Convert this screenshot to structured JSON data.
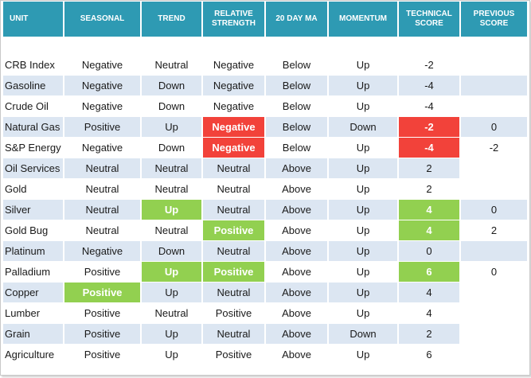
{
  "table": {
    "headers": {
      "unit": "UNIT",
      "seasonal": "SEASONAL",
      "trend": "TREND",
      "relative_strength": [
        "RELATIVE",
        "STRENGTH"
      ],
      "ma20": "20 DAY MA",
      "momentum": "MOMENTUM",
      "technical_score": [
        "TECHNICAL",
        "SCORE"
      ],
      "previous_score": [
        "PREVIOUS",
        "SCORE"
      ]
    },
    "colors": {
      "header_bg": "#2e9ab3",
      "band_blue": "#dce6f2",
      "highlight_red": "#f2423a",
      "highlight_green": "#92d050"
    },
    "rows": [
      {
        "unit": "CRB Index",
        "seasonal": "Negative",
        "trend": "Neutral",
        "rs": "Negative",
        "ma": "Below",
        "momentum": "Up",
        "score": "-2",
        "prev": ""
      },
      {
        "unit": "Gasoline",
        "seasonal": "Negative",
        "trend": "Down",
        "rs": "Negative",
        "ma": "Below",
        "momentum": "Up",
        "score": "-4",
        "prev": ""
      },
      {
        "unit": "Crude Oil",
        "seasonal": "Negative",
        "trend": "Down",
        "rs": "Negative",
        "ma": "Below",
        "momentum": "Up",
        "score": "-4",
        "prev": ""
      },
      {
        "unit": "Natural Gas",
        "seasonal": "Positive",
        "trend": "Up",
        "rs": "Negative",
        "ma": "Below",
        "momentum": "Down",
        "score": "-2",
        "prev": "0"
      },
      {
        "unit": "S&P Energy",
        "seasonal": "Negative",
        "trend": "Down",
        "rs": "Negative",
        "ma": "Below",
        "momentum": "Up",
        "score": "-4",
        "prev": "-2"
      },
      {
        "unit": "Oil Services",
        "seasonal": "Neutral",
        "trend": "Neutral",
        "rs": "Neutral",
        "ma": "Above",
        "momentum": "Up",
        "score": "2",
        "prev": ""
      },
      {
        "unit": "Gold",
        "seasonal": "Neutral",
        "trend": "Neutral",
        "rs": "Neutral",
        "ma": "Above",
        "momentum": "Up",
        "score": "2",
        "prev": ""
      },
      {
        "unit": "Silver",
        "seasonal": "Neutral",
        "trend": "Up",
        "rs": "Neutral",
        "ma": "Above",
        "momentum": "Up",
        "score": "4",
        "prev": "0"
      },
      {
        "unit": "Gold Bug",
        "seasonal": "Neutral",
        "trend": "Neutral",
        "rs": "Positive",
        "ma": "Above",
        "momentum": "Up",
        "score": "4",
        "prev": "2"
      },
      {
        "unit": "Platinum",
        "seasonal": "Negative",
        "trend": "Down",
        "rs": "Neutral",
        "ma": "Above",
        "momentum": "Up",
        "score": "0",
        "prev": ""
      },
      {
        "unit": "Palladium",
        "seasonal": "Positive",
        "trend": "Up",
        "rs": "Positive",
        "ma": "Above",
        "momentum": "Up",
        "score": "6",
        "prev": "0"
      },
      {
        "unit": "Copper",
        "seasonal": "Positive",
        "trend": "Up",
        "rs": "Neutral",
        "ma": "Above",
        "momentum": "Up",
        "score": "4",
        "prev": ""
      },
      {
        "unit": "Lumber",
        "seasonal": "Positive",
        "trend": "Neutral",
        "rs": "Positive",
        "ma": "Above",
        "momentum": "Up",
        "score": "4",
        "prev": ""
      },
      {
        "unit": "Grain",
        "seasonal": "Positive",
        "trend": "Up",
        "rs": "Neutral",
        "ma": "Above",
        "momentum": "Down",
        "score": "2",
        "prev": ""
      },
      {
        "unit": "Agriculture",
        "seasonal": "Positive",
        "trend": "Up",
        "rs": "Positive",
        "ma": "Above",
        "momentum": "Up",
        "score": "6",
        "prev": ""
      }
    ]
  }
}
